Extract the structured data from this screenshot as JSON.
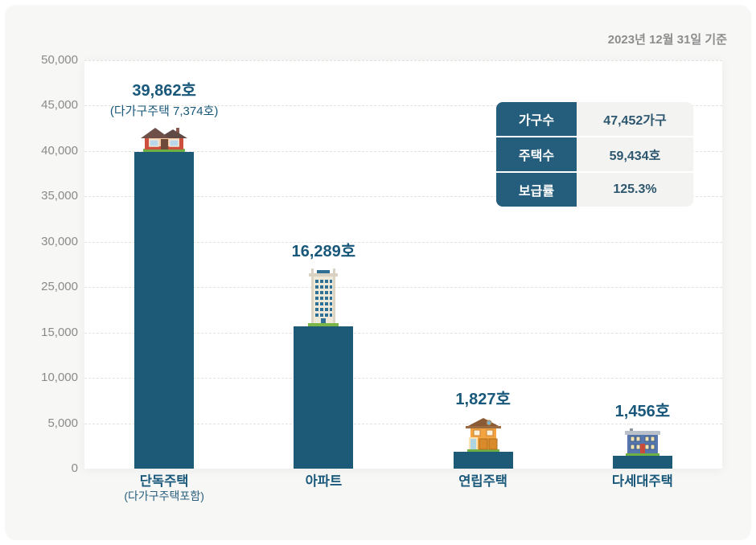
{
  "header": {
    "date_note": "2023년 12월 31일 기준"
  },
  "axis": {
    "tick_labels": [
      "50,000",
      "45,000",
      "40,000",
      "35,000",
      "30,000",
      "25,000",
      "15,000",
      "10,000",
      "5,000",
      "0"
    ],
    "tick_values": [
      50000,
      45000,
      40000,
      35000,
      30000,
      25000,
      15000,
      10000,
      5000,
      0
    ]
  },
  "bars": [
    {
      "category": "단독주택",
      "category_sub": "(다가구주택포함)",
      "value": 39862,
      "value_label": "39,862호",
      "value_sub": "(다가구주택 7,374호)",
      "icon": "detached-house-icon"
    },
    {
      "category": "아파트",
      "category_sub": "",
      "value": 16289,
      "value_label": "16,289호",
      "value_sub": "",
      "icon": "apartment-building-icon"
    },
    {
      "category": "연립주택",
      "category_sub": "",
      "value": 1827,
      "value_label": "1,827호",
      "value_sub": "",
      "icon": "rowhouse-icon"
    },
    {
      "category": "다세대주택",
      "category_sub": "",
      "value": 1456,
      "value_label": "1,456호",
      "value_sub": "",
      "icon": "multiplex-house-icon"
    }
  ],
  "info_table": {
    "rows": [
      {
        "label": "가구수",
        "value": "47,452가구"
      },
      {
        "label": "주택수",
        "value": "59,434호"
      },
      {
        "label": "보급률",
        "value": "125.3%"
      }
    ]
  },
  "colors": {
    "bar": "#1c5a78",
    "accent_text": "#19587a",
    "table_header_bg": "#255e7c",
    "table_value_bg": "#f3f3f1",
    "table_value_text": "#2d566f",
    "grid_line": "#e2e2df",
    "axis_text": "#8a8a8a",
    "card_bg": "#f7f7f6"
  },
  "chart_data": {
    "type": "bar",
    "categories": [
      "단독주택 (다가구주택포함)",
      "아파트",
      "연립주택",
      "다세대주택"
    ],
    "values": [
      39862,
      16289,
      1827,
      1456
    ],
    "data_labels": [
      "39,862호",
      "16,289호",
      "1,827호",
      "1,456호"
    ],
    "annotations": [
      "(다가구주택 7,374호)",
      "2023년 12월 31일 기준"
    ],
    "title": "",
    "xlabel": "",
    "ylabel": "",
    "ylim": [
      0,
      50000
    ],
    "y_tick_values": [
      0,
      5000,
      10000,
      15000,
      25000,
      30000,
      35000,
      40000,
      45000,
      50000
    ],
    "y_tick_note": "20,000 tick is absent in source axis",
    "grid": true,
    "legend": false,
    "bar_color": "#1c5a78",
    "summary_table": {
      "가구수": "47,452가구",
      "주택수": "59,434호",
      "보급률": "125.3%"
    }
  }
}
